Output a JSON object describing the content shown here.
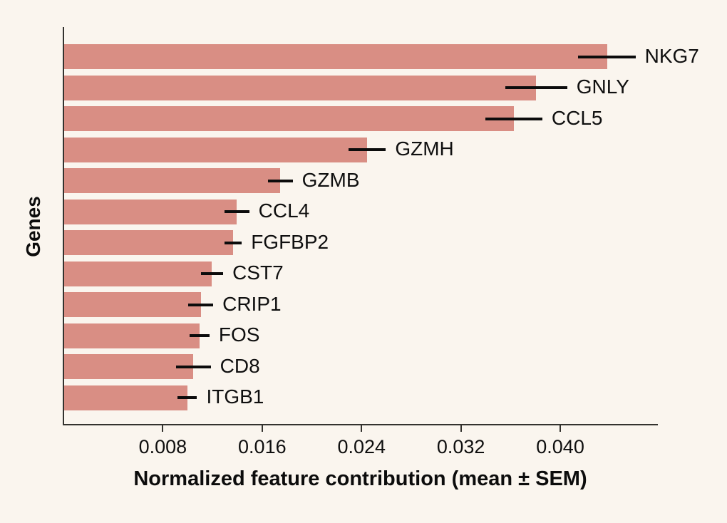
{
  "style": {
    "background_color": "#faf5ee",
    "bar_color": "#d98e84",
    "axis_color": "#33322e",
    "text_color": "#0f0f0f"
  },
  "chart_data": {
    "type": "bar",
    "orientation": "horizontal",
    "title": "",
    "xlabel": "Normalized feature contribution (mean ± SEM)",
    "ylabel": "Genes",
    "categories": [
      "NKG7",
      "GNLY",
      "CCL5",
      "GZMH",
      "GZMB",
      "CCL4",
      "FGFBP2",
      "CST7",
      "CRIP1",
      "FOS",
      "CD8",
      "ITGB1"
    ],
    "series": [
      {
        "name": "Normalized feature contribution (mean)",
        "values": [
          0.0437,
          0.038,
          0.0362,
          0.0244,
          0.0174,
          0.0139,
          0.0136,
          0.0119,
          0.011,
          0.0109,
          0.0104,
          0.0099
        ],
        "sem": [
          0.0023,
          0.0025,
          0.0023,
          0.0015,
          0.001,
          0.001,
          0.0007,
          0.0009,
          0.001,
          0.0008,
          0.0014,
          0.0008
        ]
      }
    ],
    "xlim": [
      0,
      0.0478
    ],
    "x_ticks": [
      0.008,
      0.016,
      0.024,
      0.032,
      0.04
    ],
    "x_tick_labels": [
      "0.008",
      "0.016",
      "0.024",
      "0.032",
      "0.040"
    ],
    "grid": false,
    "legend_position": "none",
    "error_bars": "SEM, horizontal, at bar ends",
    "bar_labels": "gene name to the right of each error bar"
  }
}
